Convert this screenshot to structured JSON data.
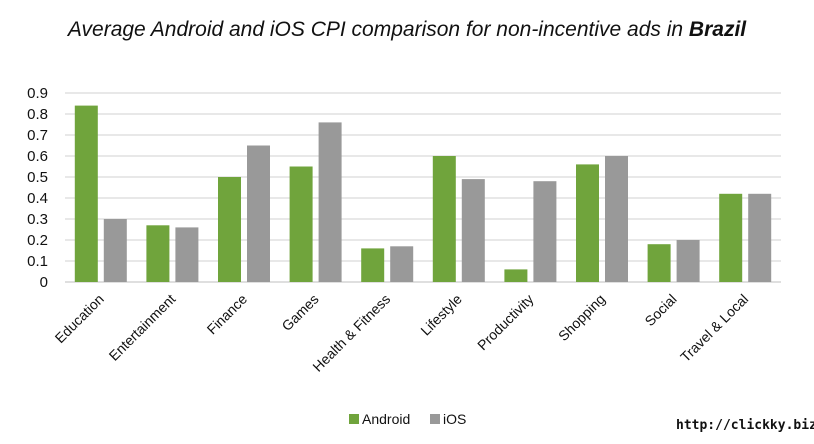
{
  "title": {
    "text": "Average Android and iOS CPI comparison for non-incentive ads in",
    "emphasis": "Brazil"
  },
  "source": "http://clickky.biz",
  "colors": {
    "android": "#70a43c",
    "ios": "#999999",
    "grid": "#d0d0d0",
    "axis": "#bfbfbf"
  },
  "chart_data": {
    "type": "bar",
    "title": "Average Android and iOS CPI comparison for non-incentive ads in Brazil",
    "xlabel": "",
    "ylabel": "",
    "ylim": [
      0,
      0.9
    ],
    "yticks": [
      "0",
      "0.1",
      "0.2",
      "0.3",
      "0.4",
      "0.5",
      "0.6",
      "0.7",
      "0.8",
      "0.9"
    ],
    "grid": true,
    "legend": "bottom",
    "categories": [
      "Education",
      "Entertainment",
      "Finance",
      "Games",
      "Health & Fitness",
      "Lifestyle",
      "Productivity",
      "Shopping",
      "Social",
      "Travel & Local"
    ],
    "series": [
      {
        "name": "Android",
        "color": "#70a43c",
        "values": [
          0.84,
          0.27,
          0.5,
          0.55,
          0.16,
          0.6,
          0.06,
          0.56,
          0.18,
          0.42
        ]
      },
      {
        "name": "iOS",
        "color": "#999999",
        "values": [
          0.3,
          0.26,
          0.65,
          0.76,
          0.17,
          0.49,
          0.48,
          0.6,
          0.2,
          0.42
        ]
      }
    ]
  }
}
